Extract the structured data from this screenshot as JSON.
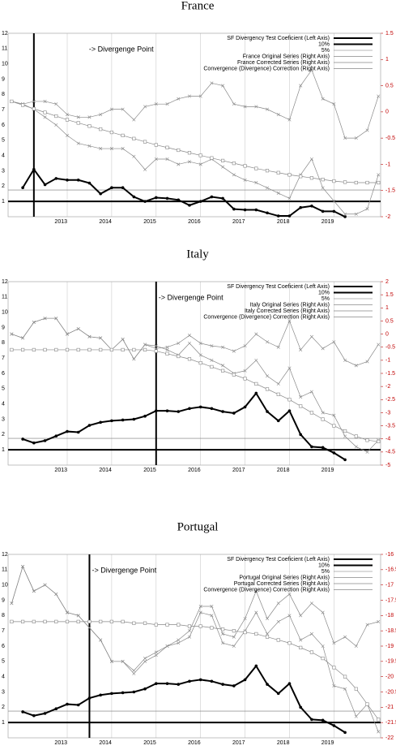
{
  "chart_data": [
    {
      "type": "line",
      "title": "France",
      "annotation": "-> Divergenge Point",
      "divergence_x": 2012.25,
      "x": [
        2011.75,
        2012,
        2012.25,
        2012.5,
        2012.75,
        2013,
        2013.25,
        2013.5,
        2013.75,
        2014,
        2014.25,
        2014.5,
        2014.75,
        2015,
        2015.25,
        2015.5,
        2015.75,
        2016,
        2016.25,
        2016.5,
        2016.75,
        2017,
        2017.25,
        2017.5,
        2017.75,
        2018,
        2018.25,
        2018.5,
        2018.75,
        2019,
        2019.25,
        2019.5,
        2019.75,
        2020
      ],
      "xlim": [
        2011.67,
        2020.05
      ],
      "xticks": [
        2013,
        2014,
        2015,
        2016,
        2017,
        2018,
        2019
      ],
      "ylim": [
        0,
        12
      ],
      "yticks": [
        1,
        2,
        3,
        4,
        5,
        6,
        7,
        8,
        9,
        10,
        11,
        12
      ],
      "y2lim": [
        -2,
        1.5
      ],
      "y2ticks": [
        -2,
        -1.5,
        -1,
        -0.5,
        0,
        0.5,
        1,
        1.5
      ],
      "grid": true,
      "reference_lines": [
        {
          "name": "10%",
          "value": 1,
          "color": "#000000",
          "width": 2
        },
        {
          "name": "5%",
          "value": 1.75,
          "color": "#777777",
          "width": 0.6
        }
      ],
      "series": [
        {
          "name": "SF Divergency Test Coeficient (Left Axis)",
          "axis": "y",
          "color": "#000000",
          "marker": "dot",
          "width": 2,
          "values": [
            null,
            1.9,
            3.1,
            2.1,
            2.5,
            2.4,
            2.4,
            2.2,
            1.5,
            1.9,
            1.9,
            1.3,
            1.0,
            1.25,
            1.2,
            1.1,
            0.75,
            1.0,
            1.3,
            1.2,
            0.5,
            0.45,
            0.45,
            0.25,
            0.05,
            0.05,
            0.6,
            0.7,
            0.35,
            0.35,
            0,
            null,
            null,
            null
          ]
        },
        {
          "name": "France Original Series (Right Axis)",
          "axis": "y2",
          "color": "#888888",
          "marker": "x",
          "width": 0.7,
          "values": [
            0.2,
            0.15,
            0.2,
            0.2,
            0.15,
            -0.05,
            -0.1,
            -0.1,
            -0.05,
            0.05,
            0.05,
            -0.15,
            0.1,
            0.15,
            0.15,
            0.25,
            0.3,
            0.3,
            0.55,
            0.5,
            0.15,
            0.1,
            0.1,
            0.05,
            -0.05,
            -0.15,
            0.5,
            0.8,
            0.25,
            0.15,
            -0.5,
            -0.5,
            -0.35,
            0.3
          ]
        },
        {
          "name": "France Corrected Series (Right Axis)",
          "axis": "y2",
          "color": "#888888",
          "marker": "x",
          "width": 0.7,
          "values": [
            0.2,
            0.15,
            0.05,
            -0.1,
            -0.25,
            -0.45,
            -0.6,
            -0.65,
            -0.7,
            -0.7,
            -0.7,
            -0.85,
            -1.1,
            -0.9,
            -0.9,
            -1.0,
            -0.95,
            -1.0,
            -0.9,
            -1.05,
            -1.2,
            -1.3,
            -1.35,
            -1.45,
            -1.55,
            -1.65,
            -1.2,
            -0.9,
            -1.45,
            -1.7,
            -1.95,
            -1.95,
            -1.85,
            -1.2
          ]
        },
        {
          "name": "Convergence (Divergence) Correction (Right Axis)",
          "axis": "y2",
          "color": "#888888",
          "marker": "square",
          "width": 0.7,
          "values": [
            0.2,
            0.13,
            0.06,
            -0.01,
            -0.08,
            -0.15,
            -0.21,
            -0.27,
            -0.33,
            -0.39,
            -0.45,
            -0.51,
            -0.57,
            -0.63,
            -0.68,
            -0.73,
            -0.78,
            -0.83,
            -0.88,
            -0.93,
            -0.98,
            -1.03,
            -1.08,
            -1.12,
            -1.16,
            -1.2,
            -1.23,
            -1.26,
            -1.29,
            -1.32,
            -1.34,
            -1.35,
            -1.35,
            -1.35
          ]
        }
      ]
    },
    {
      "type": "line",
      "title": "Italy",
      "annotation": "-> Divergenge Point",
      "divergence_x": 2015,
      "x": [
        2011.75,
        2012,
        2012.25,
        2012.5,
        2012.75,
        2013,
        2013.25,
        2013.5,
        2013.75,
        2014,
        2014.25,
        2014.5,
        2014.75,
        2015,
        2015.25,
        2015.5,
        2015.75,
        2016,
        2016.25,
        2016.5,
        2016.75,
        2017,
        2017.25,
        2017.5,
        2017.75,
        2018,
        2018.25,
        2018.5,
        2018.75,
        2019,
        2019.25,
        2019.5,
        2019.75,
        2020
      ],
      "xlim": [
        2011.67,
        2020.05
      ],
      "xticks": [
        2013,
        2014,
        2015,
        2016,
        2017,
        2018,
        2019
      ],
      "ylim": [
        0,
        12
      ],
      "yticks": [
        1,
        2,
        3,
        4,
        5,
        6,
        7,
        8,
        9,
        10,
        11,
        12
      ],
      "y2lim": [
        -5,
        2
      ],
      "y2ticks": [
        -5,
        -4.5,
        -4,
        -3.5,
        -3,
        -2.5,
        -2,
        -1.5,
        -1,
        -0.5,
        0,
        0.5,
        1,
        1.5,
        2
      ],
      "grid": true,
      "reference_lines": [
        {
          "name": "10%",
          "value": 1,
          "color": "#000000",
          "width": 2
        },
        {
          "name": "5%",
          "value": 1.75,
          "color": "#777777",
          "width": 0.6
        }
      ],
      "series": [
        {
          "name": "SF Divergency Test Coeficient (Left Axis)",
          "axis": "y",
          "color": "#000000",
          "marker": "dot",
          "width": 2,
          "values": [
            null,
            1.7,
            1.45,
            1.6,
            1.9,
            2.2,
            2.15,
            2.6,
            2.8,
            2.9,
            2.95,
            3.0,
            3.2,
            3.55,
            3.55,
            3.5,
            3.7,
            3.8,
            3.7,
            3.5,
            3.4,
            3.8,
            4.7,
            3.5,
            2.9,
            3.55,
            2.0,
            1.2,
            1.15,
            0.8,
            0.35,
            null,
            null,
            null
          ]
        },
        {
          "name": "Italy Original Series (Right Axis)",
          "axis": "y2",
          "color": "#888888",
          "marker": "x",
          "width": 0.7,
          "values": [
            0.0,
            -0.15,
            0.45,
            0.6,
            0.6,
            0.0,
            0.2,
            -0.1,
            -0.15,
            -0.6,
            -0.2,
            -0.95,
            -0.4,
            -0.55,
            -0.5,
            -0.35,
            -0.05,
            -0.35,
            -0.45,
            -0.5,
            -0.65,
            -0.45,
            0.0,
            -0.3,
            -0.5,
            0.5,
            -0.6,
            -0.1,
            -0.55,
            -0.3,
            -1.0,
            -1.2,
            -1.05,
            -0.4
          ]
        },
        {
          "name": "Italy Corrected Series (Right Axis)",
          "axis": "y2",
          "color": "#888888",
          "marker": "x",
          "width": 0.7,
          "values": [
            0.0,
            -0.15,
            0.45,
            0.6,
            0.6,
            0.0,
            0.2,
            -0.1,
            -0.15,
            -0.6,
            -0.2,
            -0.95,
            -0.4,
            -0.45,
            -0.6,
            -0.8,
            -0.35,
            -0.8,
            -1.0,
            -1.2,
            -1.5,
            -1.4,
            -1.0,
            -1.6,
            -1.9,
            -1.3,
            -2.4,
            -2.2,
            -3.0,
            -3.1,
            -3.9,
            -4.3,
            -4.5,
            -4.05
          ]
        },
        {
          "name": "Convergence (Divergence) Correction (Right Axis)",
          "axis": "y2",
          "color": "#888888",
          "marker": "square",
          "width": 0.7,
          "values": [
            -0.6,
            -0.6,
            -0.6,
            -0.6,
            -0.6,
            -0.6,
            -0.6,
            -0.6,
            -0.6,
            -0.6,
            -0.6,
            -0.6,
            -0.6,
            -0.65,
            -0.75,
            -0.85,
            -0.95,
            -1.1,
            -1.25,
            -1.4,
            -1.55,
            -1.7,
            -1.9,
            -2.1,
            -2.3,
            -2.5,
            -2.75,
            -3.0,
            -3.25,
            -3.5,
            -3.7,
            -3.9,
            -4.05,
            -4.1
          ]
        }
      ]
    },
    {
      "type": "line",
      "title": "Portugal",
      "annotation": "-> Divergenge Point",
      "divergence_x": 2013.5,
      "x": [
        2011.75,
        2012,
        2012.25,
        2012.5,
        2012.75,
        2013,
        2013.25,
        2013.5,
        2013.75,
        2014,
        2014.25,
        2014.5,
        2014.75,
        2015,
        2015.25,
        2015.5,
        2015.75,
        2016,
        2016.25,
        2016.5,
        2016.75,
        2017,
        2017.25,
        2017.5,
        2017.75,
        2018,
        2018.25,
        2018.5,
        2018.75,
        2019,
        2019.25,
        2019.5,
        2019.75,
        2020
      ],
      "xlim": [
        2011.67,
        2020.05
      ],
      "xticks": [
        2013,
        2014,
        2015,
        2016,
        2017,
        2018,
        2019
      ],
      "ylim": [
        0,
        12
      ],
      "yticks": [
        1,
        2,
        3,
        4,
        5,
        6,
        7,
        8,
        9,
        10,
        11,
        12
      ],
      "y2lim": [
        -22,
        -16
      ],
      "y2ticks": [
        -22,
        -21.5,
        -21,
        -20.5,
        -20,
        -19.5,
        -19,
        -18.5,
        -18,
        -17.5,
        -17,
        -16.5,
        -16
      ],
      "grid": true,
      "reference_lines": [
        {
          "name": "10%",
          "value": 1,
          "color": "#000000",
          "width": 2
        },
        {
          "name": "5%",
          "value": 1.75,
          "color": "#777777",
          "width": 0.6
        }
      ],
      "series": [
        {
          "name": "SF Divergency Test Coeficient (Left Axis)",
          "axis": "y",
          "color": "#000000",
          "marker": "dot",
          "width": 2,
          "values": [
            null,
            1.7,
            1.45,
            1.6,
            1.9,
            2.2,
            2.15,
            2.6,
            2.8,
            2.9,
            2.95,
            3.0,
            3.2,
            3.55,
            3.55,
            3.5,
            3.7,
            3.8,
            3.7,
            3.5,
            3.4,
            3.8,
            4.7,
            3.5,
            2.9,
            3.55,
            2.0,
            1.2,
            1.15,
            0.8,
            0.35,
            null,
            null,
            null
          ]
        },
        {
          "name": "Portugal Original Series (Right Axis)",
          "axis": "y2",
          "color": "#888888",
          "marker": "x",
          "width": 0.7,
          "values": [
            -17.6,
            -16.4,
            -17.2,
            -17.0,
            -17.3,
            -17.9,
            -18.0,
            -18.4,
            -18.8,
            -19.5,
            -19.5,
            -19.8,
            -19.4,
            -19.2,
            -19.0,
            -18.8,
            -18.5,
            -17.7,
            -17.7,
            -18.6,
            -18.7,
            -18.1,
            -17.2,
            -18.1,
            -17.6,
            -17.3,
            -18.0,
            -17.6,
            -17.9,
            -18.9,
            -18.7,
            -19.0,
            -18.3,
            -18.2
          ]
        },
        {
          "name": "Portugal Corrected Series (Right Axis)",
          "axis": "y2",
          "color": "#888888",
          "marker": "x",
          "width": 0.7,
          "values": [
            -17.6,
            -16.4,
            -17.2,
            -17.0,
            -17.3,
            -17.9,
            -18.0,
            -18.4,
            -18.8,
            -19.5,
            -19.5,
            -19.9,
            -19.5,
            -19.3,
            -19.0,
            -18.9,
            -18.7,
            -17.9,
            -18.0,
            -18.9,
            -19.0,
            -18.5,
            -17.9,
            -18.6,
            -18.2,
            -18.0,
            -18.8,
            -18.6,
            -19.0,
            -20.3,
            -20.4,
            -21.3,
            -20.9,
            -21.8
          ]
        },
        {
          "name": "Convergence (Divergence) Correction (Right Axis)",
          "axis": "y2",
          "color": "#888888",
          "marker": "square",
          "width": 0.7,
          "values": [
            -18.2,
            -18.2,
            -18.2,
            -18.2,
            -18.2,
            -18.2,
            -18.2,
            -18.2,
            -18.2,
            -18.2,
            -18.2,
            -18.25,
            -18.25,
            -18.3,
            -18.3,
            -18.3,
            -18.35,
            -18.35,
            -18.4,
            -18.45,
            -18.5,
            -18.55,
            -18.6,
            -18.7,
            -18.8,
            -18.9,
            -19.05,
            -19.2,
            -19.4,
            -19.7,
            -20.0,
            -20.4,
            -20.9,
            -21.4
          ]
        }
      ]
    }
  ]
}
